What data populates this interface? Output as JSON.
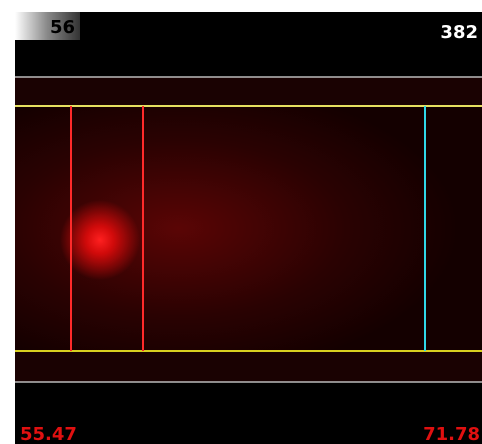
{
  "header": {
    "left_value": "56",
    "right_value": "382"
  },
  "footer": {
    "left_value": "55.47",
    "right_value": "71.78"
  }
}
